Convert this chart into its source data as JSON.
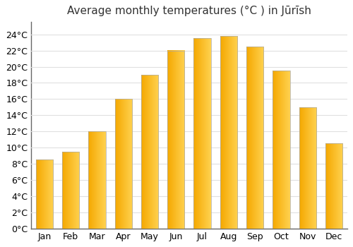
{
  "title": "Average monthly temperatures (°C ) in Jūrīsh",
  "months": [
    "Jan",
    "Feb",
    "Mar",
    "Apr",
    "May",
    "Jun",
    "Jul",
    "Aug",
    "Sep",
    "Oct",
    "Nov",
    "Dec"
  ],
  "values": [
    8.5,
    9.5,
    12.0,
    16.0,
    19.0,
    22.0,
    23.5,
    23.8,
    22.5,
    19.5,
    15.0,
    10.5
  ],
  "bar_color_left": "#F5A800",
  "bar_color_right": "#FFD050",
  "background_color": "#ffffff",
  "grid_color": "#e0e0e0",
  "ytick_labels": [
    "0°C",
    "2°C",
    "4°C",
    "6°C",
    "8°C",
    "10°C",
    "12°C",
    "14°C",
    "16°C",
    "18°C",
    "20°C",
    "22°C",
    "24°C"
  ],
  "ytick_values": [
    0,
    2,
    4,
    6,
    8,
    10,
    12,
    14,
    16,
    18,
    20,
    22,
    24
  ],
  "ylim": [
    0,
    25.5
  ],
  "title_fontsize": 11,
  "tick_fontsize": 9,
  "bar_width": 0.65,
  "bar_edge_color": "#aaaaaa",
  "bar_edge_linewidth": 0.5
}
